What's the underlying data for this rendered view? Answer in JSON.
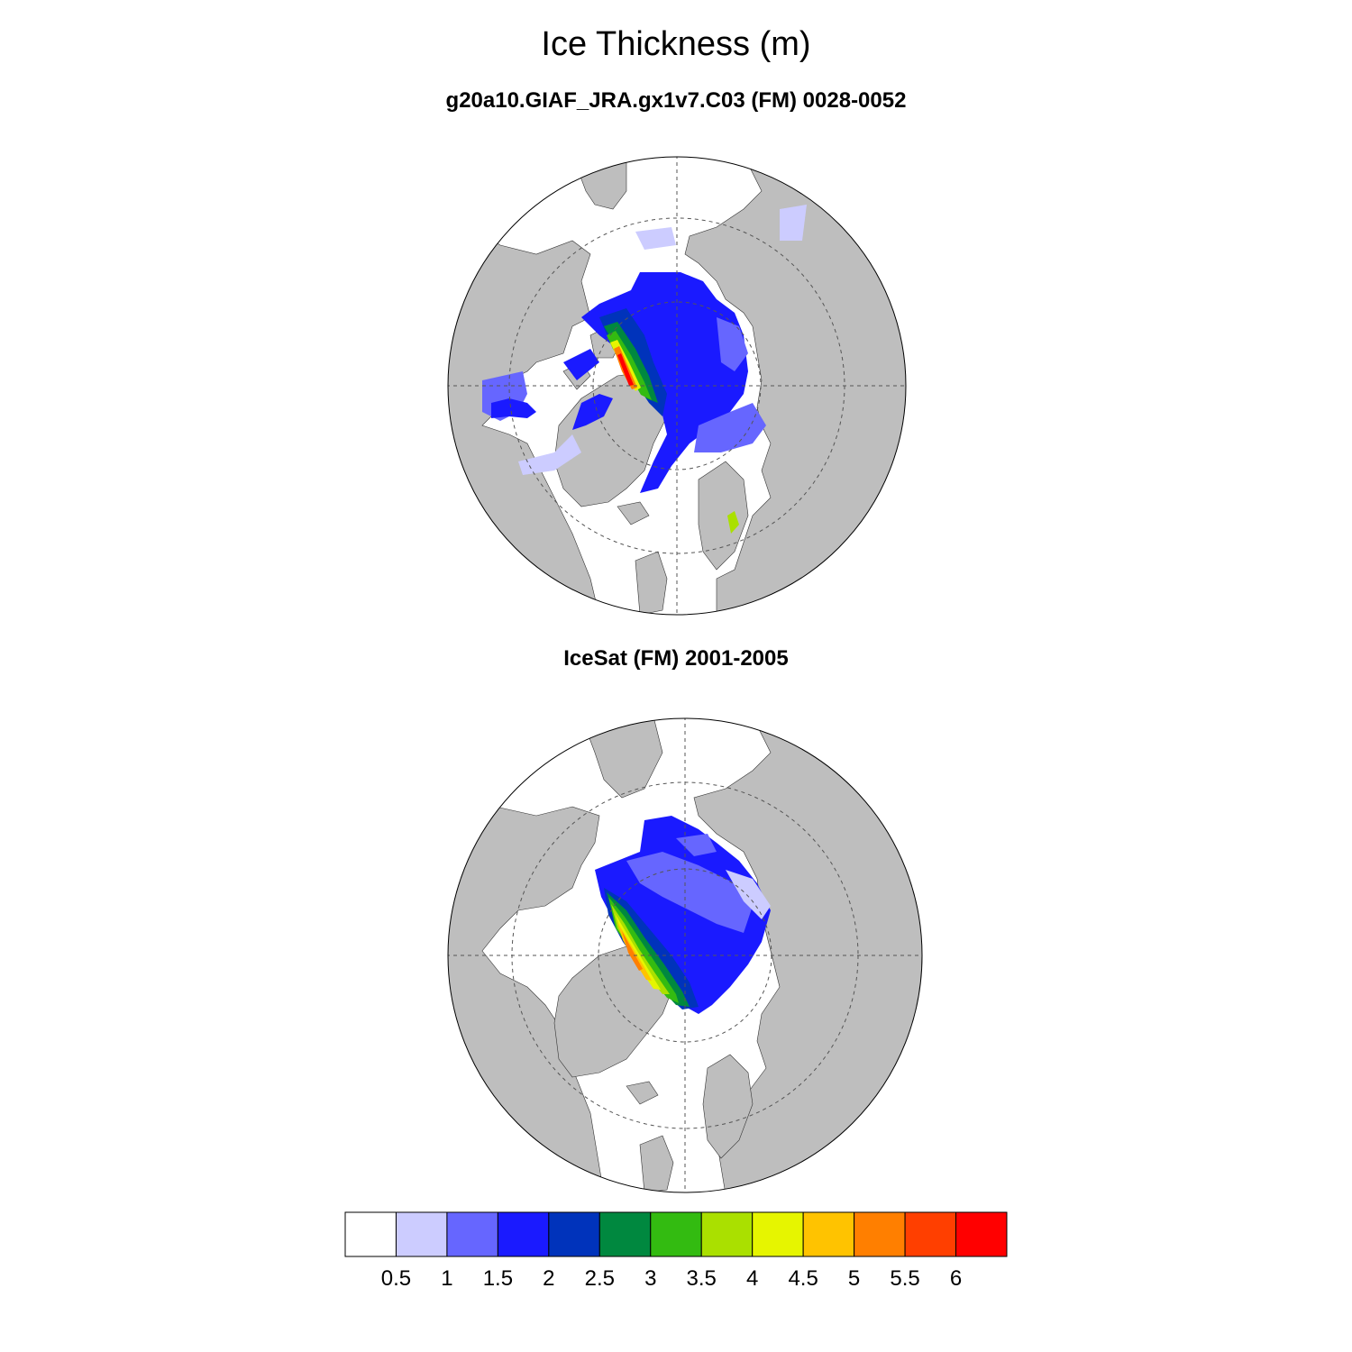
{
  "title": "Ice Thickness (m)",
  "panels": [
    {
      "subtitle": "g20a10.GIAF_JRA.gx1v7.C03 (FM) 0028-0052"
    },
    {
      "subtitle": "IceSat (FM) 2001-2005"
    }
  ],
  "colorbar": {
    "levels": [
      "0.5",
      "1",
      "1.5",
      "2",
      "2.5",
      "3",
      "3.5",
      "4",
      "4.5",
      "5",
      "5.5",
      "6"
    ],
    "colors": [
      "#FFFFFF",
      "#CCCCFF",
      "#6666FF",
      "#1A1AFF",
      "#0033BB",
      "#00883F",
      "#33BB11",
      "#AAE000",
      "#E6F500",
      "#FFC300",
      "#FF7F00",
      "#FF3F00",
      "#FF0000"
    ]
  },
  "colors": {
    "land": "#BEBEBE",
    "ocean": "#FFFFFF",
    "grid": "#555555"
  }
}
